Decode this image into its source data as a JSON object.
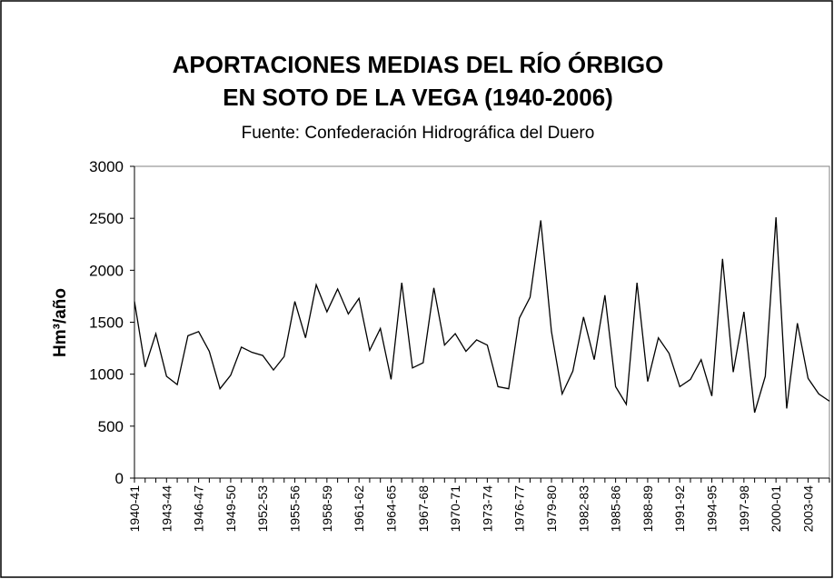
{
  "chart_data": {
    "type": "line",
    "title": [
      "APORTACIONES MEDIAS DEL RÍO ÓRBIGO",
      "EN SOTO DE LA VEGA (1940-2006)"
    ],
    "subtitle": "Fuente: Confederación Hidrográfica del Duero",
    "y_label": "Hm³/año",
    "categories": [
      "1940-41",
      null,
      null,
      "1943-44",
      null,
      null,
      "1946-47",
      null,
      null,
      "1949-50",
      null,
      null,
      "1952-53",
      null,
      null,
      "1955-56",
      null,
      null,
      "1958-59",
      null,
      null,
      "1961-62",
      null,
      null,
      "1964-65",
      null,
      null,
      "1967-68",
      null,
      null,
      "1970-71",
      null,
      null,
      "1973-74",
      null,
      null,
      "1976-77",
      null,
      null,
      "1979-80",
      null,
      null,
      "1982-83",
      null,
      null,
      "1985-86",
      null,
      null,
      "1988-89",
      null,
      null,
      "1991-92",
      null,
      null,
      "1994-95",
      null,
      null,
      "1997-98",
      null,
      null,
      "2000-01",
      null,
      null,
      "2003-04",
      null,
      null
    ],
    "series": [
      {
        "color": "#000000",
        "values": [
          1700,
          1070,
          1390,
          980,
          900,
          1370,
          1410,
          1220,
          860,
          990,
          1260,
          1210,
          1180,
          1040,
          1170,
          1700,
          1350,
          1860,
          1600,
          1820,
          1580,
          1730,
          1230,
          1440,
          950,
          1880,
          1060,
          1110,
          1830,
          1280,
          1390,
          1220,
          1330,
          1280,
          880,
          860,
          1540,
          1740,
          2480,
          1410,
          810,
          1030,
          1550,
          1140,
          1760,
          880,
          710,
          1880,
          930,
          1350,
          1200,
          880,
          950,
          1140,
          790,
          2110,
          1020,
          1600,
          630,
          980,
          2510,
          670,
          1490,
          960,
          810,
          740
        ]
      }
    ],
    "ylim": [
      0,
      3000
    ],
    "yticks": [
      0,
      500,
      1000,
      1500,
      2000,
      2500,
      3000
    ],
    "grid": false
  }
}
